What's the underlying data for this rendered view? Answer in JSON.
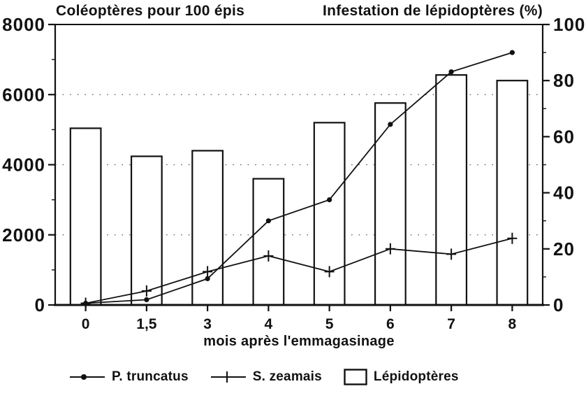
{
  "colors": {
    "ink": "#111111",
    "paper": "#ffffff"
  },
  "chart_data": {
    "type": "bar",
    "subtype": "combo bar + two lines, dual y-axes, scanned black-and-white figure",
    "categories": [
      "0",
      "1,5",
      "3",
      "4",
      "5",
      "6",
      "7",
      "8"
    ],
    "x_numeric": [
      0,
      1.5,
      3,
      4,
      5,
      6,
      7,
      8
    ],
    "xlabel": "mois après l'emmagasinage",
    "left_axis": {
      "label": "Coléoptères pour 100 épis",
      "min": 0,
      "max": 8000,
      "ticks": [
        0,
        2000,
        4000,
        6000,
        8000
      ],
      "minor_step": 1000
    },
    "right_axis": {
      "label": "Infestation de lépidoptères (%)",
      "min": 0,
      "max": 100,
      "ticks": [
        0,
        20,
        40,
        60,
        80,
        100
      ],
      "minor_step": 10
    },
    "gridlines": {
      "style": "dotted",
      "at_left_values": [
        2000,
        4000,
        6000
      ]
    },
    "series": [
      {
        "name": "P. truncatus",
        "type": "line",
        "marker": "dot",
        "axis": "left",
        "values": [
          50,
          150,
          750,
          2400,
          3000,
          5150,
          6650,
          7200
        ]
      },
      {
        "name": "S. zeamais",
        "type": "line",
        "marker": "plus",
        "axis": "left",
        "values": [
          50,
          400,
          950,
          1400,
          950,
          1600,
          1450,
          1900
        ]
      },
      {
        "name": "Lépidoptères",
        "type": "bar",
        "marker": "rect",
        "axis": "right",
        "values": [
          63,
          53,
          55,
          45,
          65,
          72,
          82,
          80
        ]
      }
    ],
    "legend": {
      "position": "bottom",
      "entries": [
        "P. truncatus",
        "S. zeamais",
        "Lépidoptères"
      ]
    }
  }
}
